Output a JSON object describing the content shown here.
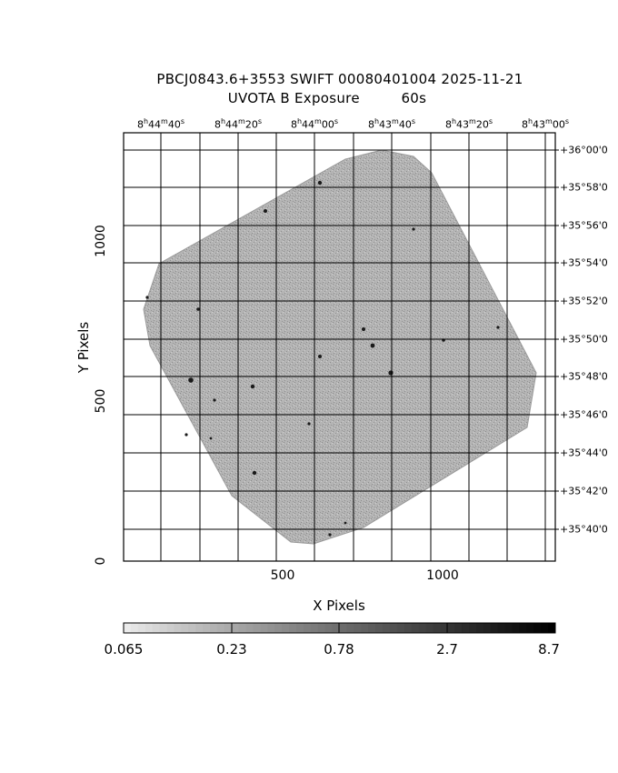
{
  "title": {
    "line1": "PBCJ0843.6+3553 SWIFT 00080401004 2025-11-21",
    "line2": "UVOTA B Exposure         60s"
  },
  "axes": {
    "xlabel": "X Pixels",
    "ylabel": "Y Pixels",
    "x_ticks": [
      "500",
      "1000"
    ],
    "y_ticks": [
      "0",
      "500",
      "1000"
    ],
    "x_range": [
      0,
      1350
    ],
    "y_range": [
      0,
      1330
    ],
    "ra_ticks": [
      {
        "h": "8",
        "m": "44",
        "s": "40"
      },
      {
        "h": "8",
        "m": "44",
        "s": "20"
      },
      {
        "h": "8",
        "m": "44",
        "s": "00"
      },
      {
        "h": "8",
        "m": "43",
        "s": "40"
      },
      {
        "h": "8",
        "m": "43",
        "s": "20"
      },
      {
        "h": "8",
        "m": "43",
        "s": "00"
      }
    ],
    "dec_ticks": [
      "+36°00'0",
      "+35°58'0",
      "+35°56'0",
      "+35°54'0",
      "+35°52'0",
      "+35°50'0",
      "+35°48'0",
      "+35°46'0",
      "+35°44'0",
      "+35°42'0",
      "+35°40'0"
    ],
    "grid": true
  },
  "colorbar": {
    "labels": [
      "0.065",
      "0.23",
      "0.78",
      "2.7",
      "8.7"
    ],
    "scale": "log",
    "colormap": "grayscale",
    "range": [
      0.065,
      8.7
    ]
  },
  "colors": {
    "background": "#ffffff",
    "frame": "#000000",
    "field": "#a6a6a6",
    "source": "#1a1a1a"
  }
}
